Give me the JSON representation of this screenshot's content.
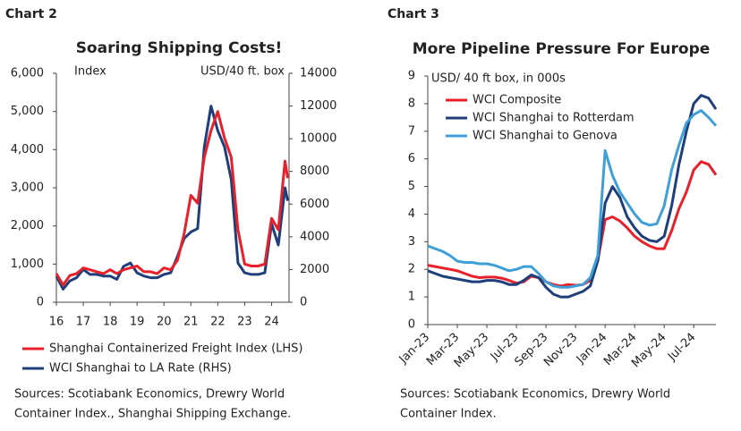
{
  "chart_data": [
    {
      "type": "line",
      "chart_label": "Chart 2",
      "title": "Soaring Shipping Costs!",
      "ylabel": "Index",
      "y2label": "USD/40 ft. box",
      "x": [
        16,
        16.25,
        16.5,
        16.75,
        17,
        17.25,
        17.5,
        17.75,
        18,
        18.25,
        18.5,
        18.75,
        19,
        19.25,
        19.5,
        19.75,
        20,
        20.25,
        20.5,
        20.75,
        21,
        21.25,
        21.5,
        21.75,
        22,
        22.25,
        22.5,
        22.75,
        23,
        23.25,
        23.5,
        23.75,
        24,
        24.25,
        24.5,
        24.6
      ],
      "xlim": [
        16,
        24.65
      ],
      "xticks": [
        16,
        17,
        18,
        19,
        20,
        21,
        22,
        23,
        24
      ],
      "ylim": [
        0,
        6000
      ],
      "yticks": [
        0,
        {
          "value": 1000,
          "label": "1,000"
        },
        {
          "value": 2000,
          "label": "2,000"
        },
        {
          "value": 3000,
          "label": "3,000"
        },
        {
          "value": 4000,
          "label": "4,000"
        },
        {
          "value": 5000,
          "label": "5,000"
        },
        {
          "value": 6000,
          "label": "6,000"
        }
      ],
      "y2lim": [
        0,
        14000
      ],
      "y2ticks": [
        0,
        2000,
        4000,
        6000,
        8000,
        10000,
        12000,
        14000
      ],
      "series": [
        {
          "name": "WCI Shanghai to LA Rate (RHS)",
          "color": "#1f3f7a",
          "axis": "y2",
          "values": [
            1600,
            800,
            1300,
            1500,
            2000,
            1700,
            1700,
            1600,
            1600,
            1400,
            2200,
            2400,
            1800,
            1600,
            1500,
            1500,
            1700,
            1800,
            2800,
            3900,
            4300,
            4500,
            9500,
            12000,
            10500,
            9500,
            7500,
            2400,
            1800,
            1700,
            1700,
            1800,
            4800,
            3500,
            7000,
            6200
          ]
        },
        {
          "name": "Shanghai Containerized Freight Index (LHS)",
          "color": "#e8202a",
          "values": [
            750,
            450,
            700,
            750,
            900,
            850,
            800,
            750,
            850,
            750,
            850,
            900,
            950,
            800,
            800,
            750,
            900,
            850,
            1100,
            1800,
            2800,
            2600,
            3800,
            4500,
            5000,
            4300,
            3800,
            1900,
            1000,
            950,
            950,
            1000,
            2200,
            1900,
            3700,
            3250
          ]
        }
      ],
      "note": [
        "Sources: Scotiabank Economics, Drewry World",
        "Container Index., Shanghai Shipping Exchange."
      ]
    },
    {
      "type": "line",
      "chart_label": "Chart 3",
      "title": "More Pipeline Pressure For Europe",
      "ylabel": "USD/ 40 ft box, in 000s",
      "categories": [
        "Jan-23",
        null,
        null,
        null,
        "Mar-23",
        null,
        null,
        null,
        "May-23",
        null,
        null,
        null,
        "Jul-23",
        null,
        null,
        null,
        "Sep-23",
        null,
        null,
        null,
        "Nov-23",
        null,
        null,
        null,
        "Jan-24",
        null,
        null,
        null,
        "Mar-24",
        null,
        null,
        null,
        "May-24",
        null,
        null,
        null,
        "Jul-24",
        null,
        null,
        null
      ],
      "ylim": [
        0,
        9
      ],
      "yticks": [
        0,
        1,
        2,
        3,
        4,
        5,
        6,
        7,
        8,
        9
      ],
      "series": [
        {
          "name": "WCI Composite",
          "color": "#e8202a",
          "values": [
            2.15,
            2.1,
            2.05,
            2.0,
            1.95,
            1.85,
            1.75,
            1.7,
            1.72,
            1.72,
            1.68,
            1.6,
            1.5,
            1.55,
            1.75,
            1.7,
            1.55,
            1.45,
            1.4,
            1.45,
            1.42,
            1.45,
            1.6,
            2.3,
            3.8,
            3.9,
            3.75,
            3.5,
            3.2,
            3.0,
            2.85,
            2.75,
            2.75,
            3.4,
            4.2,
            4.8,
            5.6,
            5.9,
            5.8,
            5.42
          ]
        },
        {
          "name": "WCI Shanghai to Rotterdam",
          "color": "#1f3f7a",
          "values": [
            1.95,
            1.85,
            1.75,
            1.7,
            1.65,
            1.6,
            1.55,
            1.55,
            1.6,
            1.6,
            1.55,
            1.45,
            1.45,
            1.6,
            1.8,
            1.7,
            1.35,
            1.1,
            1.0,
            1.0,
            1.1,
            1.2,
            1.4,
            2.3,
            4.4,
            5.0,
            4.6,
            3.9,
            3.5,
            3.2,
            3.05,
            3.0,
            3.2,
            4.3,
            5.8,
            7.0,
            8.0,
            8.3,
            8.2,
            7.8
          ]
        },
        {
          "name": "WCI Shanghai to Genova",
          "color": "#3fa0d8",
          "values": [
            2.85,
            2.75,
            2.65,
            2.5,
            2.3,
            2.25,
            2.25,
            2.2,
            2.2,
            2.15,
            2.05,
            1.95,
            2.0,
            2.1,
            2.1,
            1.85,
            1.55,
            1.4,
            1.35,
            1.35,
            1.4,
            1.45,
            1.7,
            2.5,
            6.3,
            5.4,
            4.8,
            4.4,
            4.0,
            3.7,
            3.6,
            3.65,
            4.3,
            5.6,
            6.5,
            7.3,
            7.6,
            7.75,
            7.5,
            7.2
          ]
        }
      ],
      "note": [
        "Sources: Scotiabank Economics, Drewry World",
        "Container Index."
      ]
    }
  ]
}
